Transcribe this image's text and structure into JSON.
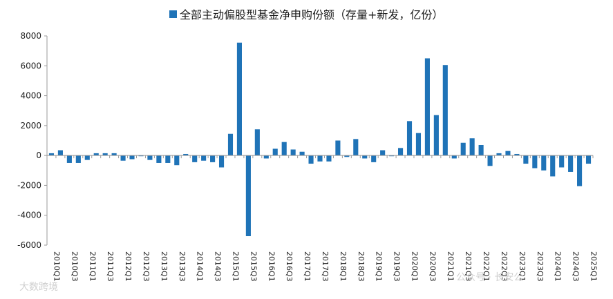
{
  "chart_data": {
    "type": "bar",
    "legend": [
      {
        "name": "全部主动偏股型基金净申购份额（存量+新发，亿份）",
        "color": "#1f73b7"
      }
    ],
    "series": [
      {
        "name": "全部主动偏股型基金净申购份额（存量+新发，亿份）",
        "color": "#1f73b7"
      }
    ],
    "ylim": [
      -6000,
      8000
    ],
    "yticks": [
      8000,
      6000,
      4000,
      2000,
      0,
      -2000,
      -4000,
      -6000
    ],
    "xtick_labels": [
      "2010Q1",
      "2010Q3",
      "2011Q1",
      "2011Q3",
      "2012Q1",
      "2012Q3",
      "2013Q1",
      "2013Q3",
      "2014Q1",
      "2014Q3",
      "2015Q1",
      "2015Q3",
      "2016Q1",
      "2016Q3",
      "2017Q1",
      "2017Q3",
      "2018Q1",
      "2018Q3",
      "2019Q1",
      "2019Q3",
      "2020Q1",
      "2020Q3",
      "2021Q1",
      "2021Q3",
      "2022Q1",
      "2022Q3",
      "2023Q1",
      "2023Q3",
      "2024Q1",
      "2024Q3",
      "2025Q1"
    ],
    "categories": [
      "2010Q1",
      "2010Q2",
      "2010Q3",
      "2010Q4",
      "2011Q1",
      "2011Q2",
      "2011Q3",
      "2011Q4",
      "2012Q1",
      "2012Q2",
      "2012Q3",
      "2012Q4",
      "2013Q1",
      "2013Q2",
      "2013Q3",
      "2013Q4",
      "2014Q1",
      "2014Q2",
      "2014Q3",
      "2014Q4",
      "2015Q1",
      "2015Q2",
      "2015Q3",
      "2015Q4",
      "2016Q1",
      "2016Q2",
      "2016Q3",
      "2016Q4",
      "2017Q1",
      "2017Q2",
      "2017Q3",
      "2017Q4",
      "2018Q1",
      "2018Q2",
      "2018Q3",
      "2018Q4",
      "2019Q1",
      "2019Q2",
      "2019Q3",
      "2019Q4",
      "2020Q1",
      "2020Q2",
      "2020Q3",
      "2020Q4",
      "2021Q1",
      "2021Q2",
      "2021Q3",
      "2021Q4",
      "2022Q1",
      "2022Q2",
      "2022Q3",
      "2022Q4",
      "2023Q1",
      "2023Q2",
      "2023Q3",
      "2023Q4",
      "2024Q1",
      "2024Q2",
      "2024Q3",
      "2024Q4",
      "2025Q1"
    ],
    "values": [
      150,
      350,
      -500,
      -500,
      -300,
      150,
      150,
      150,
      -350,
      -250,
      -50,
      -300,
      -500,
      -500,
      -650,
      100,
      -450,
      -350,
      -450,
      -800,
      1450,
      7550,
      -5400,
      1750,
      -200,
      450,
      900,
      400,
      250,
      -550,
      -400,
      -400,
      1000,
      -100,
      1100,
      -200,
      -450,
      350,
      -50,
      500,
      2300,
      1500,
      6500,
      2700,
      6050,
      -200,
      850,
      1150,
      700,
      -700,
      150,
      300,
      100,
      -550,
      -850,
      -1000,
      -1400,
      -800,
      -1100,
      -2050,
      -550
    ]
  },
  "watermarks": {
    "left": "大数跨境",
    "right": "公众号 · 长安公"
  }
}
